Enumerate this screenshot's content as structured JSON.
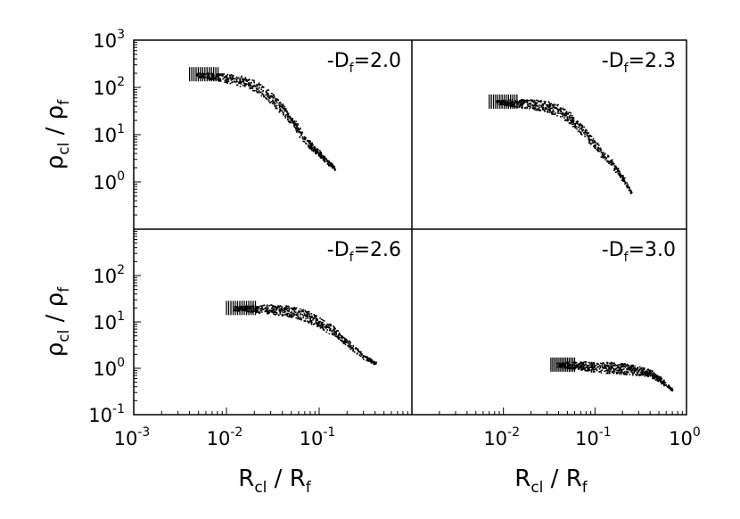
{
  "chart_data": {
    "type": "scatter",
    "xscale": "log",
    "yscale": "log",
    "xlim": [
      0.001,
      1
    ],
    "x_ticks": [
      {
        "base": "10",
        "exp": "-3",
        "value": 0.001
      },
      {
        "base": "10",
        "exp": "-2",
        "value": 0.01
      },
      {
        "base": "10",
        "exp": "-1",
        "value": 0.1
      },
      {
        "base": "10",
        "exp": "0",
        "value": 1
      }
    ],
    "xlabel": {
      "main": "R",
      "sub": "cl",
      "sep": " / ",
      "main2": "R",
      "sub2": "f"
    },
    "ylabel": {
      "main": "ρ",
      "sub": "cl",
      "sep": " / ",
      "main2": "ρ",
      "sub2": "f"
    },
    "grid": false,
    "panels": [
      {
        "label": {
          "prefix": "D",
          "sub": "f",
          "value": "=2.0"
        },
        "ylim": [
          0.1,
          1000
        ],
        "y_ticks": [
          {
            "base": "10",
            "exp": "0",
            "value": 1
          },
          {
            "base": "10",
            "exp": "1",
            "value": 10
          },
          {
            "base": "10",
            "exp": "2",
            "value": 100
          },
          {
            "base": "10",
            "exp": "3",
            "value": 1000
          }
        ],
        "points": [
          [
            0.004,
            190
          ],
          [
            0.005,
            185
          ],
          [
            0.006,
            180
          ],
          [
            0.007,
            175
          ],
          [
            0.008,
            170
          ],
          [
            0.01,
            160
          ],
          [
            0.012,
            150
          ],
          [
            0.015,
            135
          ],
          [
            0.02,
            110
          ],
          [
            0.025,
            85
          ],
          [
            0.03,
            60
          ],
          [
            0.04,
            35
          ],
          [
            0.05,
            20
          ],
          [
            0.06,
            12
          ],
          [
            0.07,
            8
          ],
          [
            0.08,
            6
          ],
          [
            0.1,
            4
          ],
          [
            0.12,
            2.8
          ],
          [
            0.15,
            1.9
          ]
        ]
      },
      {
        "label": {
          "prefix": "D",
          "sub": "f",
          "value": "=2.3"
        },
        "ylim": [
          0.1,
          1000
        ],
        "y_ticks": [],
        "points": [
          [
            0.007,
            50
          ],
          [
            0.008,
            50
          ],
          [
            0.01,
            49
          ],
          [
            0.015,
            47
          ],
          [
            0.02,
            45
          ],
          [
            0.03,
            40
          ],
          [
            0.04,
            33
          ],
          [
            0.05,
            25
          ],
          [
            0.06,
            18
          ],
          [
            0.08,
            10
          ],
          [
            0.1,
            6
          ],
          [
            0.12,
            4
          ],
          [
            0.15,
            2.6
          ],
          [
            0.2,
            1.2
          ],
          [
            0.25,
            0.6
          ]
        ]
      },
      {
        "label": {
          "prefix": "D",
          "sub": "f",
          "value": "=2.6"
        },
        "ylim": [
          0.1,
          1000
        ],
        "y_ticks": [
          {
            "base": "10",
            "exp": "-1",
            "value": 0.1
          },
          {
            "base": "10",
            "exp": "0",
            "value": 1
          },
          {
            "base": "10",
            "exp": "1",
            "value": 10
          },
          {
            "base": "10",
            "exp": "2",
            "value": 100
          }
        ],
        "points": [
          [
            0.01,
            20
          ],
          [
            0.012,
            20
          ],
          [
            0.015,
            20
          ],
          [
            0.02,
            19.5
          ],
          [
            0.03,
            19
          ],
          [
            0.04,
            18
          ],
          [
            0.05,
            17
          ],
          [
            0.07,
            14
          ],
          [
            0.1,
            10
          ],
          [
            0.15,
            6
          ],
          [
            0.2,
            3.5
          ],
          [
            0.3,
            1.8
          ],
          [
            0.4,
            1.3
          ]
        ]
      },
      {
        "label": {
          "prefix": "D",
          "sub": "f",
          "value": "=3.0"
        },
        "ylim": [
          0.1,
          1000
        ],
        "y_ticks": [],
        "points": [
          [
            0.033,
            1.2
          ],
          [
            0.04,
            1.2
          ],
          [
            0.05,
            1.2
          ],
          [
            0.07,
            1.15
          ],
          [
            0.1,
            1.1
          ],
          [
            0.15,
            1.05
          ],
          [
            0.2,
            1.0
          ],
          [
            0.3,
            0.9
          ],
          [
            0.4,
            0.8
          ],
          [
            0.5,
            0.6
          ],
          [
            0.6,
            0.45
          ],
          [
            0.7,
            0.35
          ]
        ]
      }
    ]
  }
}
